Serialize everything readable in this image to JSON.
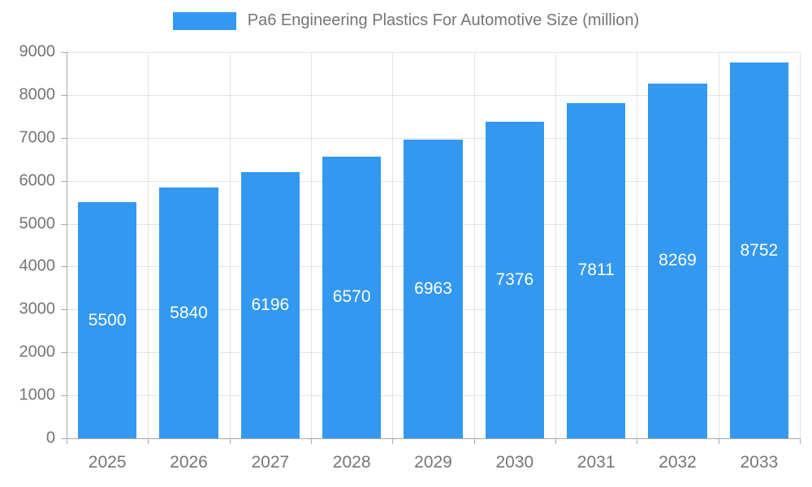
{
  "chart_data": {
    "type": "bar",
    "title": "Pa6 Engineering Plastics For Automotive Size (million)",
    "categories": [
      "2025",
      "2026",
      "2027",
      "2028",
      "2029",
      "2030",
      "2031",
      "2032",
      "2033"
    ],
    "values": [
      5500,
      5840,
      6196,
      6570,
      6963,
      7376,
      7811,
      8269,
      8752
    ],
    "xlabel": "",
    "ylabel": "",
    "ylim": [
      0,
      9000
    ],
    "ytick_step": 1000,
    "grid": true,
    "legend_position": "top-center",
    "value_labels": "centered-inside-bars",
    "colors": {
      "bar": "#3398f0",
      "value_label": "#ffffff",
      "axis_text": "#757575",
      "gridline": "#e3e3e3",
      "axis_line": "#a8a8a8",
      "background": "#ffffff"
    }
  }
}
